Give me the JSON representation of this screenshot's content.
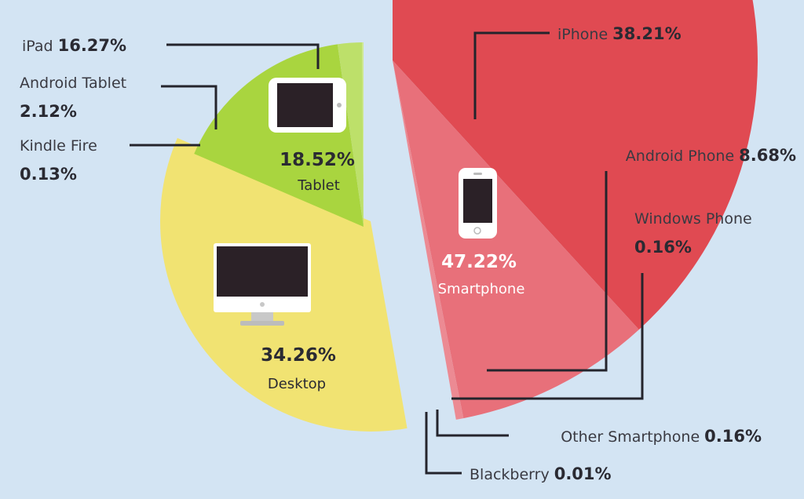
{
  "chart_data": {
    "type": "pie",
    "categories": [
      {
        "name": "Smartphone",
        "value": 47.22,
        "value_label": "47.22%",
        "color": "#e04a52",
        "text_color": "#ffffff",
        "icon": "smartphone-icon",
        "slices": [
          {
            "name": "iPhone",
            "value": 38.21,
            "value_label": "38.21%",
            "color": "#e04a52"
          },
          {
            "name": "Android Phone",
            "value": 8.68,
            "value_label": "8.68%",
            "color": "#e8707a"
          },
          {
            "name": "Windows Phone",
            "value": 0.16,
            "value_label": "0.16%",
            "color": "#ec8a93"
          },
          {
            "name": "Other Smartphone",
            "value": 0.16,
            "value_label": "0.16%",
            "color": "#f0a0a8"
          },
          {
            "name": "Blackberry",
            "value": 0.01,
            "value_label": "0.01%",
            "color": "#f4b4bb"
          }
        ]
      },
      {
        "name": "Desktop",
        "value": 34.26,
        "value_label": "34.26%",
        "color": "#f1e372",
        "text_color": "#2a2a32",
        "icon": "desktop-monitor-icon",
        "slices": [
          {
            "name": "Desktop",
            "value": 34.26,
            "value_label": "34.26%",
            "color": "#f1e372"
          }
        ]
      },
      {
        "name": "Tablet",
        "value": 18.52,
        "value_label": "18.52%",
        "color": "#a9d53f",
        "text_color": "#2a2a32",
        "icon": "tablet-icon",
        "slices": [
          {
            "name": "iPad",
            "value": 16.27,
            "value_label": "16.27%",
            "color": "#a9d53f"
          },
          {
            "name": "Android Tablet",
            "value": 2.12,
            "value_label": "2.12%",
            "color": "#bde06a"
          },
          {
            "name": "Kindle Fire",
            "value": 0.13,
            "value_label": "0.13%",
            "color": "#cfe98f"
          }
        ]
      }
    ]
  }
}
